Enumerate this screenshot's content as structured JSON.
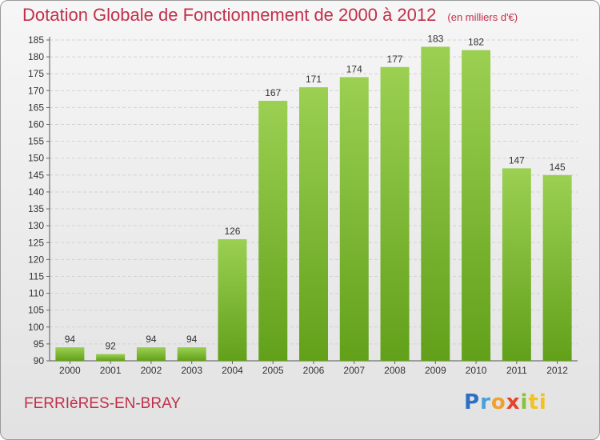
{
  "title": "Dotation Globale de Fonctionnement de 2000 à 2012",
  "unit": "(en milliers d'€)",
  "commune": "FERRIèRES-EN-BRAY",
  "logo": {
    "letters": [
      "P",
      "r",
      "o",
      "x",
      "i",
      "ti"
    ]
  },
  "colors": {
    "bar_light": "#9bd052",
    "bar_dark": "#62a01a",
    "title": "#c0304a"
  },
  "chart_data": {
    "type": "bar",
    "categories": [
      "2000",
      "2001",
      "2002",
      "2003",
      "2004",
      "2005",
      "2006",
      "2007",
      "2008",
      "2009",
      "2010",
      "2011",
      "2012"
    ],
    "values": [
      94,
      92,
      94,
      94,
      126,
      167,
      171,
      174,
      177,
      183,
      182,
      147,
      145
    ],
    "title": "Dotation Globale de Fonctionnement de 2000 à 2012",
    "ylim": [
      90,
      185
    ],
    "yticks": [
      90,
      95,
      100,
      105,
      110,
      115,
      120,
      125,
      130,
      135,
      140,
      145,
      150,
      155,
      160,
      165,
      170,
      175,
      180,
      185
    ],
    "grid": true,
    "legend": "none"
  }
}
